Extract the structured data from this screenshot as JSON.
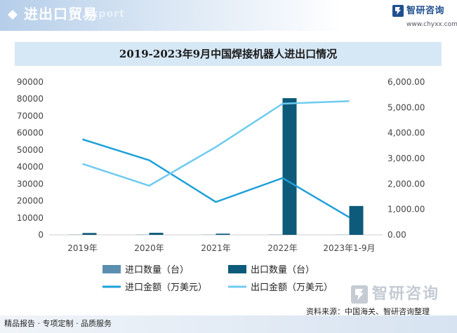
{
  "header": {
    "title": "进出口贸易",
    "watermark": "export"
  },
  "brand": {
    "name": "智研咨询",
    "url": "www.chyxx.com"
  },
  "chart_data": {
    "type": "bar+line",
    "title": "2019-2023年9月中国焊接机器人进出口情况",
    "categories": [
      "2019年",
      "2020年",
      "2021年",
      "2022年",
      "2023年1-9月"
    ],
    "y_left": {
      "range": [
        0,
        90000
      ],
      "ticks": [
        "0",
        "10000",
        "20000",
        "30000",
        "40000",
        "50000",
        "60000",
        "70000",
        "80000",
        "90000"
      ]
    },
    "y_right": {
      "range": [
        0,
        6000
      ],
      "ticks": [
        "0.00",
        "1,000.00",
        "2,000.00",
        "3,000.00",
        "4,000.00",
        "5,000.00",
        "6,000.00"
      ]
    },
    "bar_series": [
      {
        "name": "进口数量（台）",
        "axis": "left",
        "color": "#5b8fb0",
        "values": [
          150,
          140,
          120,
          150,
          100
        ]
      },
      {
        "name": "出口数量（台）",
        "axis": "left",
        "color": "#0e5a7a",
        "values": [
          1100,
          1200,
          700,
          80500,
          17000
        ]
      }
    ],
    "line_series": [
      {
        "name": "进口金额（万美元）",
        "axis": "right",
        "color": "#1ea0d8",
        "values": [
          3750,
          2930,
          1290,
          2230,
          690
        ]
      },
      {
        "name": "出口金额（万美元）",
        "axis": "right",
        "color": "#6fcbf0",
        "values": [
          2790,
          1930,
          3450,
          5150,
          5250
        ]
      }
    ],
    "legend_position": "bottom",
    "grid": false
  },
  "footer": {
    "left_text": "精品报告 · 专项定制 · 品质服务",
    "source": "资料来源：中国海关、智研咨询整理",
    "logo_name": "智研咨询"
  }
}
